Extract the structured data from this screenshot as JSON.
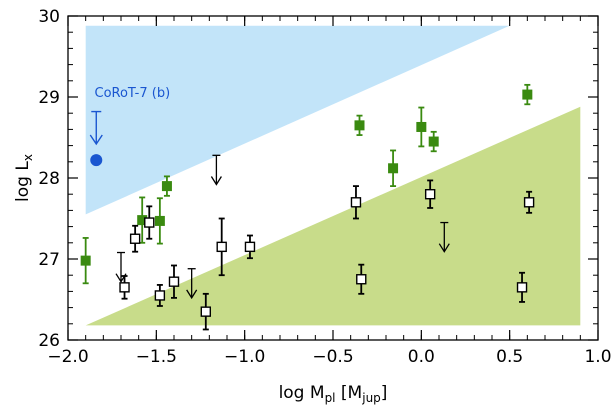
{
  "chart_data": {
    "type": "scatter",
    "title": "",
    "xlabel": {
      "base": "log M",
      "sub": "pl",
      "unit_open": " [M",
      "unit_sub": "jup",
      "unit_close": "]"
    },
    "ylabel": {
      "base": "log L",
      "sub": "x"
    },
    "xlim": [
      -2.0,
      1.0
    ],
    "ylim": [
      26.0,
      30.0
    ],
    "xticks": [
      -2.0,
      -1.5,
      -1.0,
      -0.5,
      0.0,
      0.5,
      1.0
    ],
    "xtick_labels": [
      "−2.0",
      "−1.5",
      "−1.0",
      "−0.5",
      "0.0",
      "0.5",
      "1.0"
    ],
    "yticks": [
      26,
      27,
      28,
      29,
      30
    ],
    "ytick_labels": [
      "26",
      "27",
      "28",
      "29",
      "30"
    ],
    "grid": false,
    "colors": {
      "blue_region": "#c2e4f9",
      "green_region": "#c8dc8a",
      "green_points": "#3a8a10",
      "corot": "#1a56d0",
      "black": "#000000"
    },
    "regions": [
      {
        "name": "",
        "color": "blue",
        "polygon": [
          [
            -1.9,
            27.55
          ],
          [
            -1.9,
            29.88
          ],
          [
            0.5,
            29.88
          ]
        ]
      },
      {
        "name": "",
        "color": "green",
        "polygon": [
          [
            -1.9,
            26.18
          ],
          [
            0.9,
            26.18
          ],
          [
            0.9,
            28.88
          ]
        ]
      }
    ],
    "series": [
      {
        "marker": "filled-square",
        "color": "green",
        "points": [
          {
            "x": -1.9,
            "y": 26.98,
            "err": [
              0.28,
              0.28
            ]
          },
          {
            "x": -1.58,
            "y": 27.48,
            "err": [
              0.28,
              0.28
            ]
          },
          {
            "x": -1.48,
            "y": 27.47,
            "err": [
              0.28,
              0.28
            ]
          },
          {
            "x": -1.44,
            "y": 27.9,
            "err": [
              0.12,
              0.12
            ]
          },
          {
            "x": -0.35,
            "y": 28.65,
            "err": [
              0.12,
              0.12
            ]
          },
          {
            "x": -0.16,
            "y": 28.12,
            "err": [
              0.22,
              0.22
            ]
          },
          {
            "x": 0.0,
            "y": 28.63,
            "err": [
              0.24,
              0.24
            ]
          },
          {
            "x": 0.07,
            "y": 28.45,
            "err": [
              0.12,
              0.12
            ]
          },
          {
            "x": 0.6,
            "y": 29.03,
            "err": [
              0.12,
              0.12
            ]
          }
        ]
      },
      {
        "marker": "open-square",
        "color": "black",
        "points": [
          {
            "x": -1.68,
            "y": 26.65,
            "err": [
              0.14,
              0.14
            ]
          },
          {
            "x": -1.62,
            "y": 27.25,
            "err": [
              0.16,
              0.16
            ]
          },
          {
            "x": -1.54,
            "y": 27.45,
            "err": [
              0.2,
              0.2
            ]
          },
          {
            "x": -1.48,
            "y": 26.55,
            "err": [
              0.13,
              0.13
            ]
          },
          {
            "x": -1.4,
            "y": 26.72,
            "err": [
              0.2,
              0.2
            ]
          },
          {
            "x": -1.22,
            "y": 26.35,
            "err": [
              0.22,
              0.22
            ]
          },
          {
            "x": -1.13,
            "y": 27.15,
            "err": [
              0.35,
              0.35
            ]
          },
          {
            "x": -0.97,
            "y": 27.15,
            "err": [
              0.14,
              0.14
            ]
          },
          {
            "x": -0.37,
            "y": 27.7,
            "err": [
              0.2,
              0.2
            ]
          },
          {
            "x": -0.34,
            "y": 26.75,
            "err": [
              0.18,
              0.18
            ]
          },
          {
            "x": 0.05,
            "y": 27.8,
            "err": [
              0.17,
              0.17
            ]
          },
          {
            "x": 0.57,
            "y": 26.65,
            "err": [
              0.18,
              0.18
            ]
          },
          {
            "x": 0.61,
            "y": 27.7,
            "err": [
              0.13,
              0.13
            ]
          }
        ]
      },
      {
        "marker": "upper-limit-arrow",
        "color": "black",
        "points": [
          {
            "x": -1.7,
            "y": 27.08,
            "y_end": 26.72
          },
          {
            "x": -1.3,
            "y": 26.88,
            "y_end": 26.52
          },
          {
            "x": -1.16,
            "y": 28.28,
            "y_end": 27.92
          },
          {
            "x": 0.13,
            "y": 27.45,
            "y_end": 27.09
          }
        ]
      },
      {
        "marker": "filled-circle",
        "color": "corot",
        "points": [
          {
            "x": -1.84,
            "y": 28.22
          }
        ]
      }
    ],
    "annotations": [
      {
        "text": "CoRoT-7 (b)",
        "x": -1.85,
        "y": 29.05,
        "color": "corot",
        "arrow": {
          "x": -1.84,
          "y_start": 28.82,
          "y_end": 28.42
        }
      }
    ]
  }
}
